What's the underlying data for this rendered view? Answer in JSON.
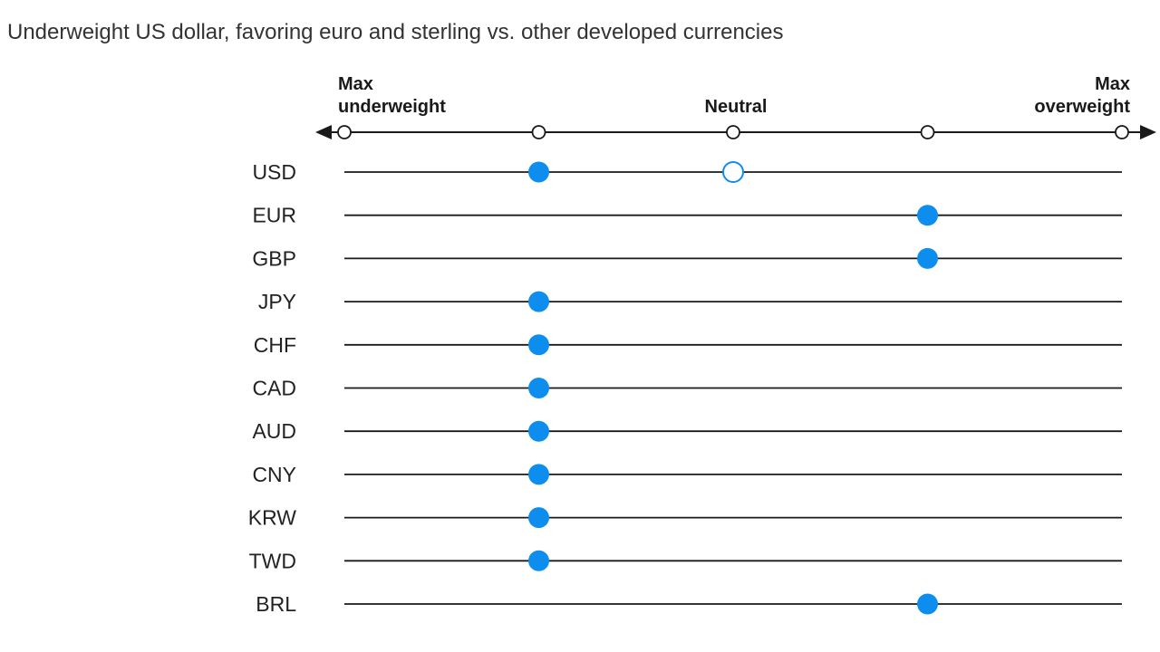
{
  "title": "Underweight US dollar, favoring euro and sterling vs. other developed currencies",
  "colors": {
    "marker": "#0d8eef",
    "line": "#1a1a1a",
    "text": "#222222"
  },
  "chart_data": {
    "type": "scatter",
    "scale": {
      "levels": [
        -2,
        -1,
        0,
        1,
        2
      ],
      "labels": {
        "min": [
          "Max",
          "underweight"
        ],
        "neutral": "Neutral",
        "max": [
          "Max",
          "overweight"
        ]
      }
    },
    "rows": [
      {
        "label": "USD",
        "value": -1,
        "previous": 0
      },
      {
        "label": "EUR",
        "value": 1
      },
      {
        "label": "GBP",
        "value": 1
      },
      {
        "label": "JPY",
        "value": -1
      },
      {
        "label": "CHF",
        "value": -1
      },
      {
        "label": "CAD",
        "value": -1
      },
      {
        "label": "AUD",
        "value": -1
      },
      {
        "label": "CNY",
        "value": -1
      },
      {
        "label": "KRW",
        "value": -1
      },
      {
        "label": "TWD",
        "value": -1
      },
      {
        "label": "BRL",
        "value": 1
      }
    ]
  }
}
